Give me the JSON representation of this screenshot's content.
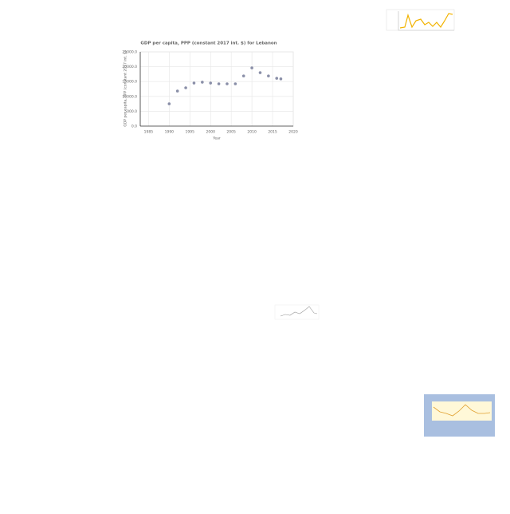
{
  "chart_data": {
    "type": "scatter",
    "title": "GDP per capita, PPP (constant 2017 int. $) for Lebanon",
    "x_label": "Year",
    "y_label": "GDP per capita, PPP (constant 2017 int. $)",
    "x": [
      1990,
      1992,
      1994,
      1996,
      1998,
      2000,
      2002,
      2004,
      2006,
      2008,
      2010,
      2012,
      2014,
      2016,
      2017
    ],
    "values": [
      7500,
      11800,
      12900,
      14500,
      14800,
      14500,
      14250,
      14250,
      14250,
      16900,
      19600,
      18000,
      16900,
      16100,
      15900
    ],
    "color": "#8a8fa8",
    "xlim": [
      1983,
      2020
    ],
    "xticks": [
      1985,
      1990,
      1995,
      2000,
      2005,
      2010,
      2015,
      2020
    ],
    "ylim": [
      0,
      25000
    ],
    "yticks": [
      {
        "value": 0,
        "label": "0.0"
      },
      {
        "value": 5000,
        "label": "5000.0"
      },
      {
        "value": 10000,
        "label": "10000.0"
      },
      {
        "value": 15000,
        "label": "15000.0"
      },
      {
        "value": 20000,
        "label": "20000.0"
      },
      {
        "value": 25000,
        "label": "25000.0"
      }
    ],
    "grid": true
  }
}
